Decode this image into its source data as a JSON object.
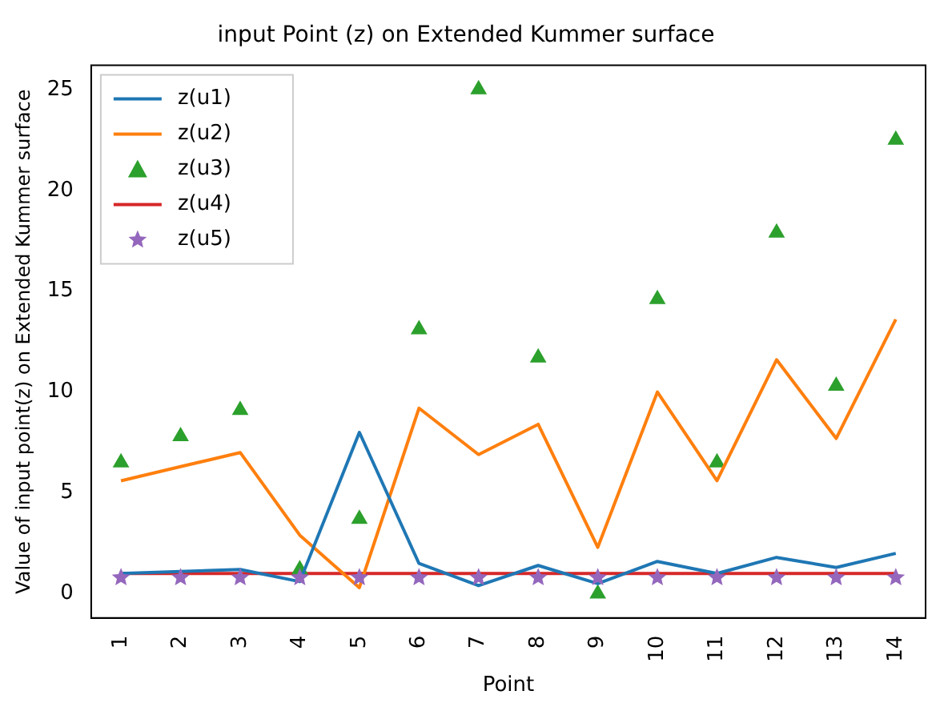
{
  "chart_data": {
    "type": "line",
    "title": "input Point (z) on Extended Kummer surface",
    "xlabel": "Point",
    "ylabel": "Value of input point(z) on Extended Kummer surface",
    "categories": [
      "1",
      "2",
      "3",
      "4",
      "5",
      "6",
      "7",
      "8",
      "9",
      "10",
      "11",
      "12",
      "13",
      "14"
    ],
    "ylim": [
      -1.2,
      26.2
    ],
    "yticks": [
      0,
      5,
      10,
      15,
      20,
      25
    ],
    "grid": false,
    "legend": "top left",
    "series": [
      {
        "name": "z(u1)",
        "color": "#1f77b4",
        "marker": "none",
        "values": [
          1.0,
          1.1,
          1.2,
          0.6,
          8.0,
          1.5,
          0.4,
          1.4,
          0.5,
          1.6,
          1.0,
          1.8,
          1.3,
          2.0
        ]
      },
      {
        "name": "z(u2)",
        "color": "#ff7f0e",
        "marker": "none",
        "values": [
          5.6,
          6.3,
          7.0,
          2.9,
          0.3,
          9.2,
          6.9,
          8.4,
          2.3,
          10.0,
          5.6,
          11.6,
          7.7,
          13.6
        ]
      },
      {
        "name": "z(u3)",
        "color": "#2ca02c",
        "type": "scatter",
        "marker": "triangle",
        "values": [
          6.5,
          7.8,
          9.1,
          1.2,
          3.7,
          13.1,
          25.0,
          11.7,
          0.0,
          14.6,
          6.5,
          17.9,
          10.3,
          22.5
        ]
      },
      {
        "name": "z(u4)",
        "color": "#d62728",
        "marker": "none",
        "values": [
          1,
          1,
          1,
          1,
          1,
          1,
          1,
          1,
          1,
          1,
          1,
          1,
          1,
          1
        ]
      },
      {
        "name": "z(u5)",
        "color": "#9467bd",
        "type": "scatter",
        "marker": "star",
        "values": [
          0.8,
          0.8,
          0.8,
          0.8,
          0.8,
          0.8,
          0.8,
          0.8,
          0.8,
          0.8,
          0.8,
          0.8,
          0.8,
          0.8
        ]
      }
    ]
  }
}
